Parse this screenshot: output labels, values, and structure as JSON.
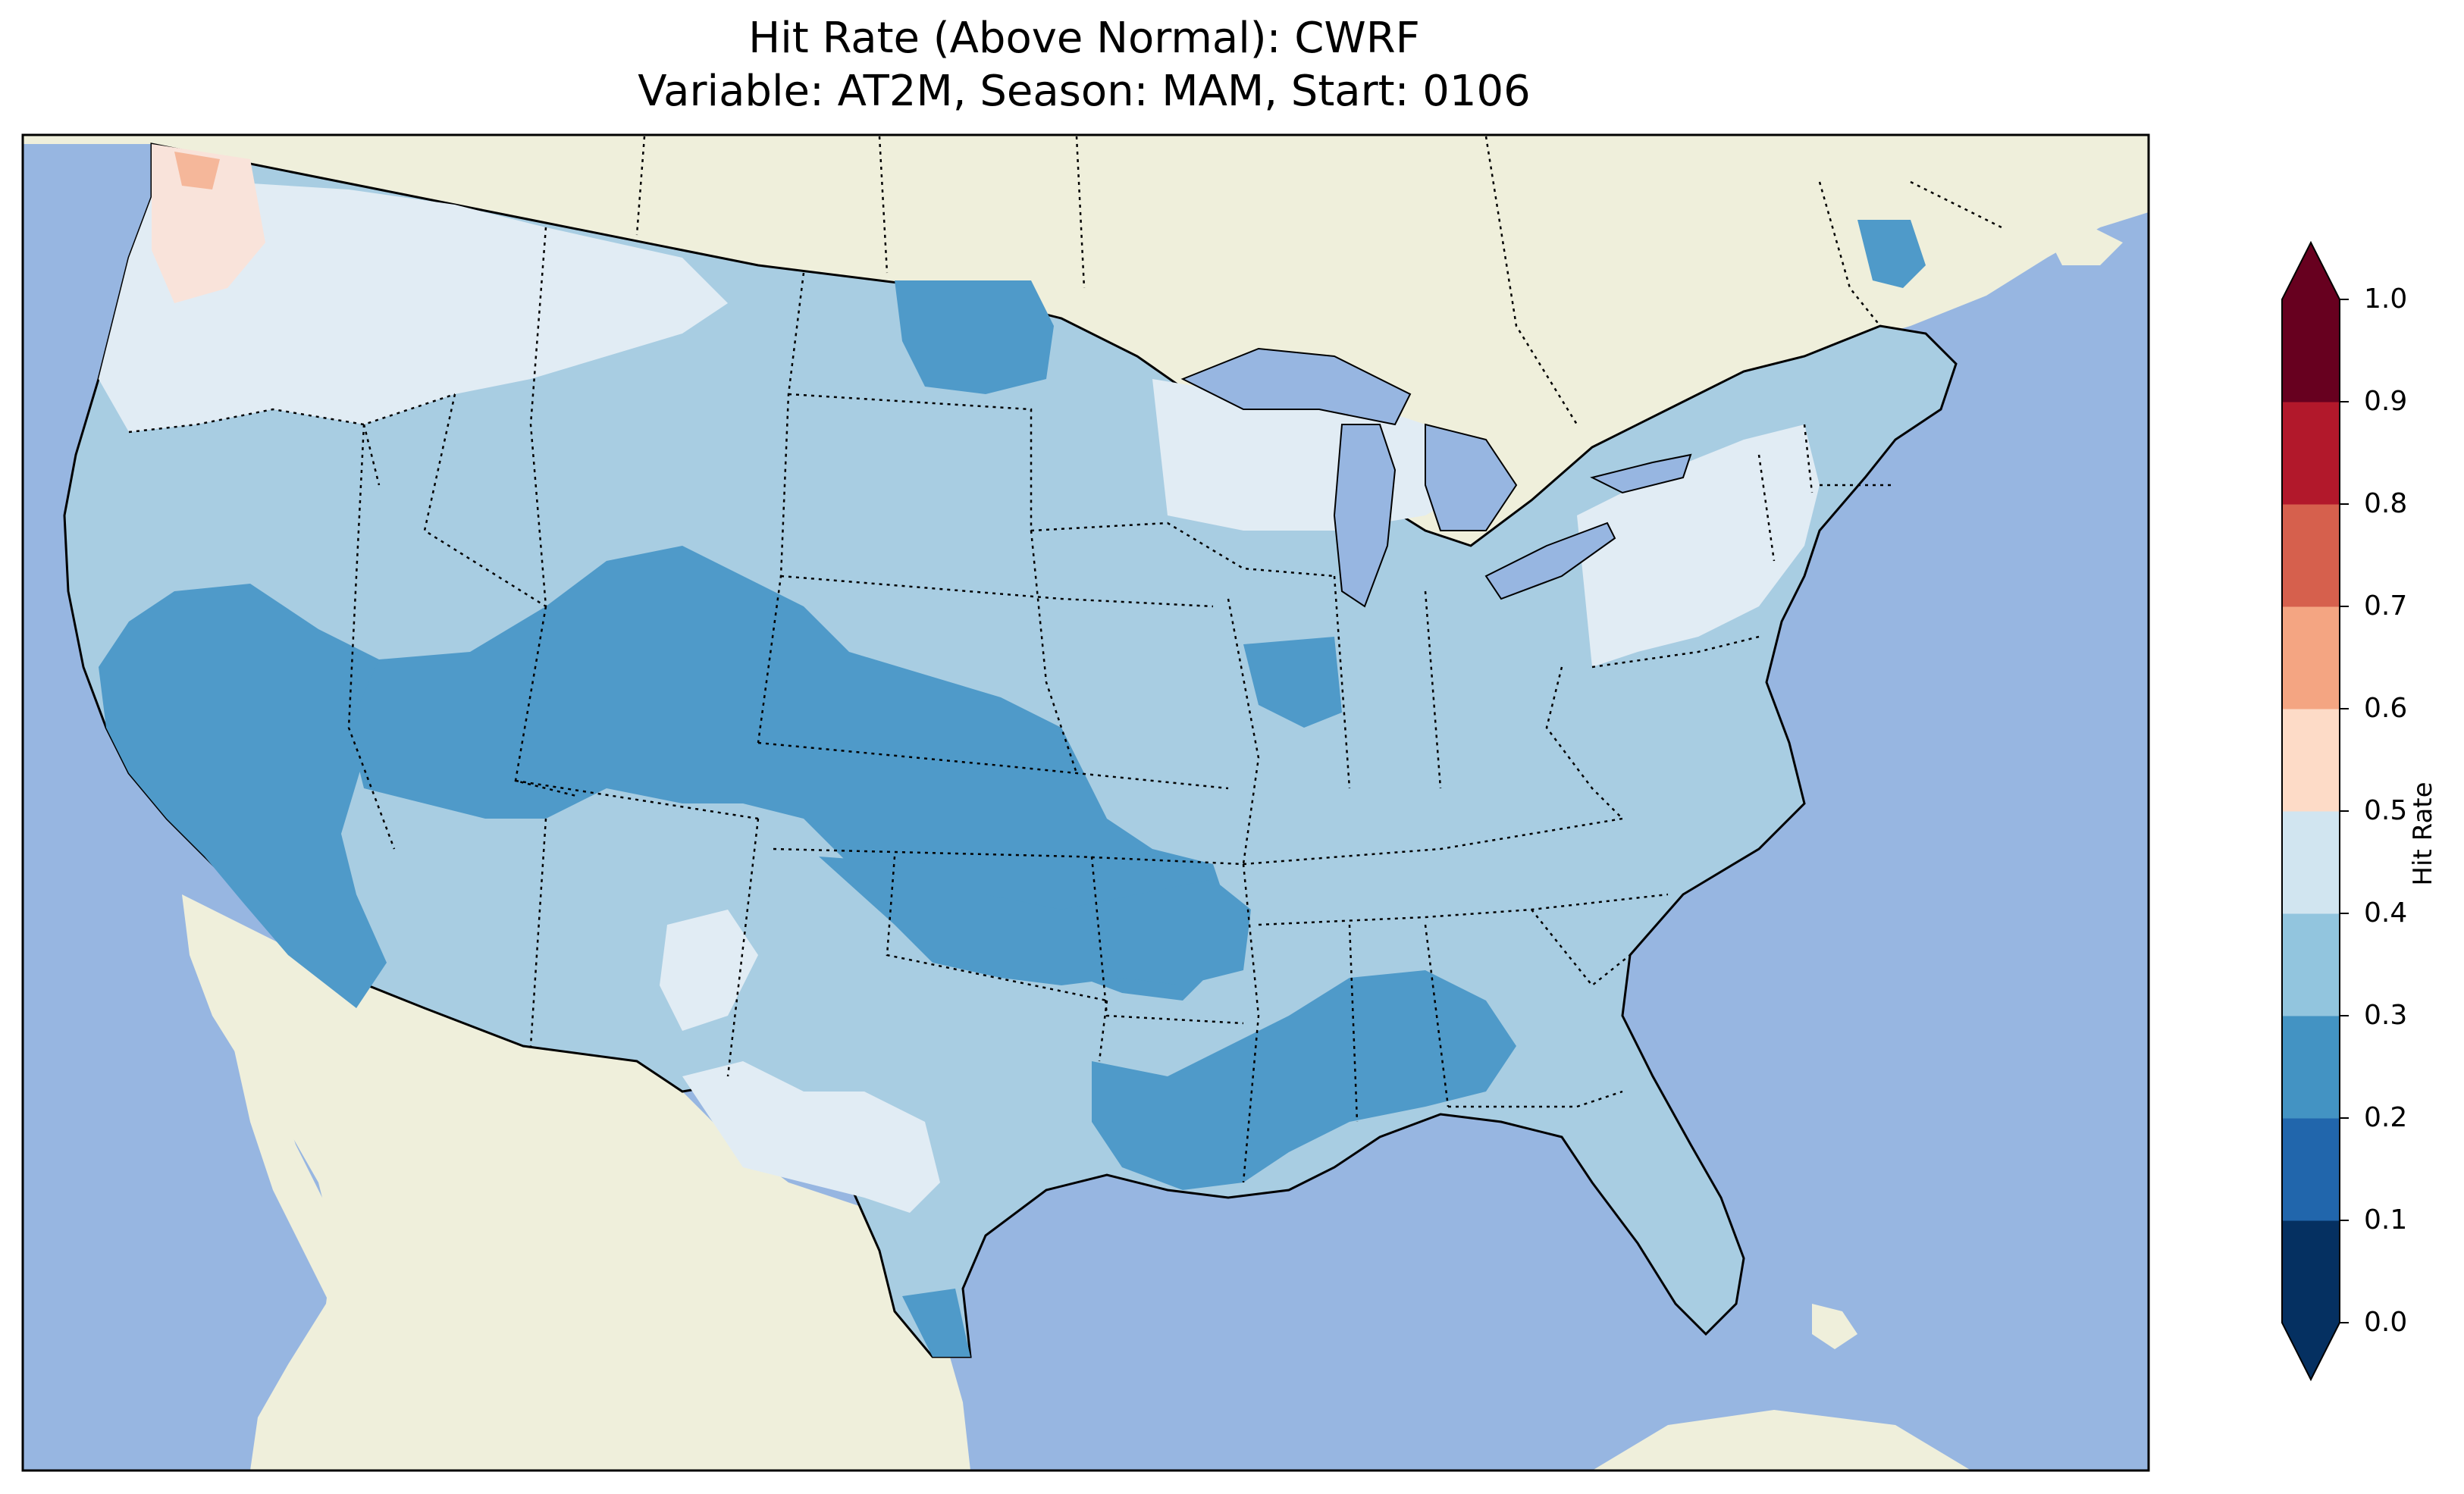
{
  "title": {
    "line1": "Hit Rate (Above Normal): CWRF",
    "line2": "Variable: AT2M, Season: MAM, Start: 0106"
  },
  "colorbar": {
    "label": "Hit Rate",
    "ticks": [
      "0.0",
      "0.1",
      "0.2",
      "0.3",
      "0.4",
      "0.5",
      "0.6",
      "0.7",
      "0.8",
      "0.9",
      "1.0"
    ],
    "colors": [
      "#053061",
      "#2166ac",
      "#4393c3",
      "#92c5de",
      "#d1e5f0",
      "#fddbc7",
      "#f4a582",
      "#d6604d",
      "#b2182b",
      "#67001f"
    ],
    "range": [
      0.0,
      1.0
    ],
    "extend": "both"
  },
  "map_data": {
    "region": "Contiguous United States",
    "projection": "Lambert Conformal",
    "ocean_color": "#97b6e1",
    "land_color": "#efefdb",
    "bin_colors": {
      "0.2-0.3": "#4f9ac9",
      "0.3-0.4": "#a8cde2",
      "0.4-0.5": "#e1ecf4",
      "0.5-0.6": "#f9e3da",
      "0.6-0.7": "#f5b79a"
    },
    "dominant_bin": "0.3-0.4",
    "notable_areas": [
      {
        "area": "Pacific Northwest coast",
        "bin": "0.5-0.6"
      },
      {
        "area": "NW Washington",
        "bin": "0.6-0.7"
      },
      {
        "area": "California / Nevada",
        "bin": "0.2-0.3"
      },
      {
        "area": "Utah / Colorado / Kansas",
        "bin": "0.2-0.3"
      },
      {
        "area": "Northern North Dakota",
        "bin": "0.2-0.3"
      },
      {
        "area": "Oklahoma / Arkansas",
        "bin": "0.2-0.3"
      },
      {
        "area": "Louisiana / Mississippi / Alabama",
        "bin": "0.2-0.3"
      },
      {
        "area": "South Texas tip",
        "bin": "0.2-0.3"
      },
      {
        "area": "Northern Maine",
        "bin": "0.2-0.3"
      },
      {
        "area": "Wisconsin / Michigan",
        "bin": "0.4-0.5"
      },
      {
        "area": "New York / Pennsylvania",
        "bin": "0.4-0.5"
      },
      {
        "area": "West Texas",
        "bin": "0.4-0.5"
      },
      {
        "area": "Washington / Idaho / Montana",
        "bin": "0.4-0.5"
      }
    ]
  }
}
